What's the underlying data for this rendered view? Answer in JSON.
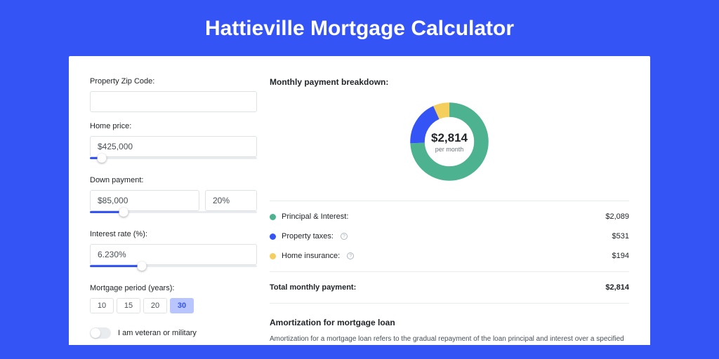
{
  "colors": {
    "page_bg": "#3454f5",
    "card_bg": "#ffffff",
    "accent": "#3454f5",
    "text": "#212529",
    "muted": "#6c757d",
    "border": "#dee2e6",
    "track": "#e9ecef",
    "period_active_bg": "#b8c5ff"
  },
  "title": "Hattieville Mortgage Calculator",
  "form": {
    "zip_label": "Property Zip Code:",
    "zip_value": "",
    "home_price_label": "Home price:",
    "home_price_value": "$425,000",
    "home_price_slider_pct": 7,
    "down_payment_label": "Down payment:",
    "down_payment_value": "$85,000",
    "down_payment_pct": "20%",
    "down_payment_slider_pct": 20,
    "interest_label": "Interest rate (%):",
    "interest_value": "6.230%",
    "interest_slider_pct": 31,
    "period_label": "Mortgage period (years):",
    "periods": [
      "10",
      "15",
      "20",
      "30"
    ],
    "period_active_index": 3,
    "veteran_label": "I am veteran or military",
    "veteran_on": false
  },
  "breakdown": {
    "heading": "Monthly payment breakdown:",
    "donut": {
      "amount": "$2,814",
      "sub": "per month",
      "segments": [
        {
          "label": "Principal & Interest",
          "value": 2089,
          "pct": 74.2,
          "color": "#4cb28f"
        },
        {
          "label": "Property taxes",
          "value": 531,
          "pct": 18.9,
          "color": "#3454f5"
        },
        {
          "label": "Home insurance",
          "value": 194,
          "pct": 6.9,
          "color": "#f4cf5d"
        }
      ]
    },
    "items": [
      {
        "dot": "#4cb28f",
        "label": "Principal & Interest:",
        "info": false,
        "value": "$2,089"
      },
      {
        "dot": "#3454f5",
        "label": "Property taxes:",
        "info": true,
        "value": "$531"
      },
      {
        "dot": "#f4cf5d",
        "label": "Home insurance:",
        "info": true,
        "value": "$194"
      }
    ],
    "total_label": "Total monthly payment:",
    "total_value": "$2,814"
  },
  "amortization": {
    "heading": "Amortization for mortgage loan",
    "text": "Amortization for a mortgage loan refers to the gradual repayment of the loan principal and interest over a specified"
  }
}
